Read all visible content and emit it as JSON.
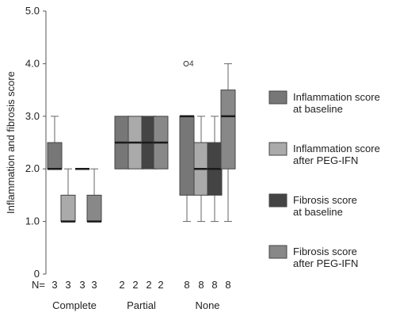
{
  "chart_data": {
    "type": "boxplot",
    "ylabel": "Inflammation and fibrosis score",
    "ylim": [
      0,
      5
    ],
    "yticks": [
      "0",
      "1.0",
      "2.0",
      "3.0",
      "4.0",
      "5.0"
    ],
    "n_prefix": "N=",
    "groups": [
      {
        "label": "Complete",
        "n": [
          "3",
          "3",
          "3",
          "3"
        ]
      },
      {
        "label": "Partial",
        "n": [
          "2",
          "2",
          "2",
          "2"
        ]
      },
      {
        "label": "None",
        "n": [
          "8",
          "8",
          "8",
          "8"
        ]
      }
    ],
    "series": [
      {
        "name": "Inflammation score at baseline",
        "color": "#777777"
      },
      {
        "name": "Inflammation score after PEG-IFN",
        "color": "#aaaaaa"
      },
      {
        "name": "Fibrosis score at baseline",
        "color": "#444444"
      },
      {
        "name": "Fibrosis score after PEG-IFN",
        "color": "#888888"
      }
    ],
    "legend_lines": [
      [
        "Inflammation score",
        "at baseline"
      ],
      [
        "Inflammation score",
        "after PEG-IFN"
      ],
      [
        "Fibrosis score",
        "at baseline"
      ],
      [
        "Fibrosis score",
        "after PEG-IFN"
      ]
    ],
    "boxes": [
      {
        "group": 0,
        "series": 0,
        "min": 2.0,
        "q1": 2.0,
        "median": 2.0,
        "q3": 2.5,
        "max": 3.0
      },
      {
        "group": 0,
        "series": 1,
        "min": 1.0,
        "q1": 1.0,
        "median": 1.0,
        "q3": 1.5,
        "max": 2.0
      },
      {
        "group": 0,
        "series": 2,
        "min": 2.0,
        "q1": 2.0,
        "median": 2.0,
        "q3": 2.0,
        "max": 2.0
      },
      {
        "group": 0,
        "series": 3,
        "min": 1.0,
        "q1": 1.0,
        "median": 1.0,
        "q3": 1.5,
        "max": 2.0
      },
      {
        "group": 1,
        "series": 0,
        "min": 2.0,
        "q1": 2.0,
        "median": 2.5,
        "q3": 3.0,
        "max": 3.0
      },
      {
        "group": 1,
        "series": 1,
        "min": 2.0,
        "q1": 2.0,
        "median": 2.5,
        "q3": 3.0,
        "max": 3.0
      },
      {
        "group": 1,
        "series": 2,
        "min": 2.0,
        "q1": 2.0,
        "median": 2.5,
        "q3": 3.0,
        "max": 3.0
      },
      {
        "group": 1,
        "series": 3,
        "min": 2.0,
        "q1": 2.0,
        "median": 2.5,
        "q3": 3.0,
        "max": 3.0
      },
      {
        "group": 2,
        "series": 0,
        "min": 1.0,
        "q1": 1.5,
        "median": 3.0,
        "q3": 3.0,
        "max": 3.0
      },
      {
        "group": 2,
        "series": 1,
        "min": 1.0,
        "q1": 1.5,
        "median": 2.0,
        "q3": 2.5,
        "max": 3.0
      },
      {
        "group": 2,
        "series": 2,
        "min": 1.0,
        "q1": 1.5,
        "median": 2.0,
        "q3": 2.5,
        "max": 3.0
      },
      {
        "group": 2,
        "series": 3,
        "min": 1.0,
        "q1": 2.0,
        "median": 3.0,
        "q3": 3.5,
        "max": 4.0
      }
    ],
    "outliers": [
      {
        "group": 2,
        "series": 0,
        "value": 4.0,
        "label": "4"
      }
    ]
  }
}
